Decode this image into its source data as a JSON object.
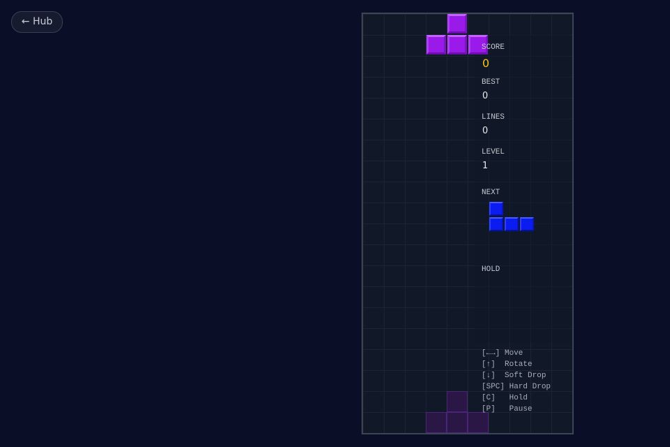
{
  "hub_button": "← Hub",
  "stats": [
    {
      "label": "SCORE",
      "value": "0"
    },
    {
      "label": "BEST",
      "value": "0"
    },
    {
      "label": "LINES",
      "value": "0"
    },
    {
      "label": "LEVEL",
      "value": "1"
    }
  ],
  "next_label": "NEXT",
  "hold_label": "HOLD",
  "controls": [
    "[←→] Move",
    "[↑]  Rotate",
    "[↓]  Soft Drop",
    "[SPC] Hard Drop",
    "[C]   Hold",
    "[P]   Pause"
  ]
}
